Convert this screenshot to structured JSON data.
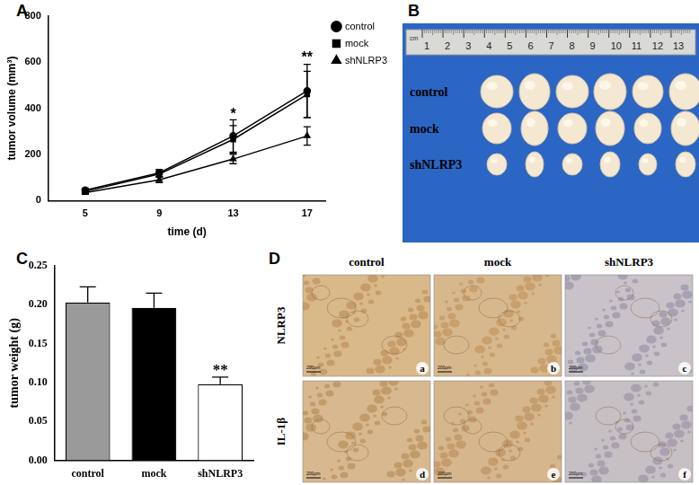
{
  "chart_data": [
    {
      "panel_label": "A",
      "type": "line",
      "x_label": "time (d)",
      "y_label": "tumor volume (mm³)",
      "x": [
        5,
        9,
        13,
        17
      ],
      "xlim": [
        3,
        18
      ],
      "xticks": [
        5,
        9,
        13,
        17
      ],
      "ylim": [
        0,
        800
      ],
      "yticks": [
        0,
        200,
        400,
        600,
        800
      ],
      "series": [
        {
          "name": "control",
          "color": "#000000",
          "marker": "circle",
          "values": [
            45,
            120,
            280,
            475
          ],
          "errors": [
            8,
            15,
            70,
            115
          ]
        },
        {
          "name": "mock",
          "color": "#000000",
          "marker": "square",
          "values": [
            40,
            115,
            265,
            460
          ],
          "errors": [
            7,
            14,
            60,
            100
          ]
        },
        {
          "name": "shNLRP3",
          "color": "#000000",
          "marker": "triangle",
          "values": [
            35,
            90,
            180,
            280
          ],
          "errors": [
            5,
            12,
            20,
            40
          ]
        }
      ],
      "annotations": [
        {
          "text": "*",
          "x": 13,
          "y": 365
        },
        {
          "text": "**",
          "x": 17,
          "y": 610
        }
      ],
      "legend": "right",
      "grid": false
    },
    {
      "panel_label": "C",
      "type": "bar",
      "y_label": "tumor weight (g)",
      "categories": [
        "control",
        "mock",
        "shNLRP3"
      ],
      "values": [
        0.203,
        0.196,
        0.098
      ],
      "errors": [
        0.02,
        0.019,
        0.009
      ],
      "colors": [
        "#9a9a9a",
        "#000000",
        "#ffffff"
      ],
      "ylim": [
        0,
        0.25
      ],
      "yticks": [
        {
          "value": 0,
          "label": "0.00"
        },
        {
          "value": 0.05,
          "label": "0.05"
        },
        {
          "value": 0.1,
          "label": "0.10"
        },
        {
          "value": 0.15,
          "label": "0.15"
        },
        {
          "value": 0.2,
          "label": "0.20"
        },
        {
          "value": 0.25,
          "label": "0.25"
        }
      ],
      "annotations": [
        {
          "text": "**",
          "x": "shNLRP3",
          "y": 0.112
        }
      ],
      "grid": false
    }
  ],
  "photo_panels": {
    "B": {
      "panel_label": "B",
      "ruler_unit": "cm",
      "ruler_ticks": [
        1,
        2,
        3,
        4,
        5,
        6,
        7,
        8,
        9,
        10,
        11,
        12,
        13
      ],
      "rows": [
        "control",
        "mock",
        "shNLRP3"
      ]
    },
    "D": {
      "panel_label": "D",
      "columns": [
        "control",
        "mock",
        "shNLRP3"
      ],
      "rows": [
        "NLRP3",
        "IL-1β"
      ],
      "image_labels": [
        [
          "a",
          "b",
          "c"
        ],
        [
          "d",
          "e",
          "f"
        ]
      ],
      "scale_bar": "200μm"
    }
  }
}
